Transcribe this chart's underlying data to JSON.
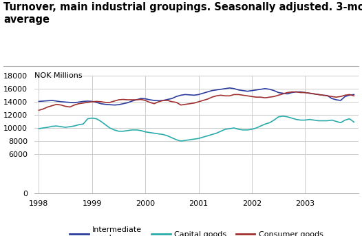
{
  "title_line1": "Turnover, main industrial groupings. Seasonally adjusted. 3-month moving",
  "title_line2": "average",
  "ylabel": "NOK Millions",
  "title_fontsize": 10.5,
  "label_fontsize": 8,
  "background_color": "#ffffff",
  "grid_color": "#cccccc",
  "ylim": [
    0,
    18000
  ],
  "yticks": [
    0,
    6000,
    8000,
    10000,
    12000,
    14000,
    16000,
    18000
  ],
  "line_colors": {
    "intermediate": "#2b3c9e",
    "capital": "#2aabab",
    "consumer": "#a03030"
  },
  "legend_labels": [
    "Intermediate\ngoods",
    "Capital goods",
    "Consumer goods"
  ],
  "intermediate_goods": [
    14050,
    14100,
    14150,
    14200,
    14100,
    14000,
    13950,
    13900,
    13850,
    13950,
    14050,
    14100,
    14050,
    13900,
    13700,
    13600,
    13550,
    13500,
    13550,
    13700,
    13850,
    14100,
    14300,
    14500,
    14450,
    14300,
    14200,
    14150,
    14200,
    14350,
    14500,
    14800,
    15000,
    15100,
    15050,
    15000,
    15100,
    15300,
    15500,
    15700,
    15800,
    15900,
    16000,
    16100,
    16000,
    15800,
    15700,
    15600,
    15700,
    15800,
    15900,
    16000,
    15900,
    15700,
    15400,
    15300,
    15200,
    15400,
    15500,
    15500,
    15400,
    15300,
    15200,
    15100,
    15000,
    14950,
    14500,
    14300,
    14200,
    14800,
    15000,
    15100
  ],
  "capital_goods": [
    9900,
    10000,
    10100,
    10250,
    10300,
    10200,
    10100,
    10200,
    10300,
    10500,
    10600,
    11400,
    11500,
    11400,
    11000,
    10500,
    10000,
    9700,
    9500,
    9500,
    9600,
    9700,
    9700,
    9600,
    9400,
    9300,
    9200,
    9100,
    9000,
    8800,
    8500,
    8200,
    8000,
    8100,
    8200,
    8300,
    8400,
    8600,
    8800,
    9000,
    9200,
    9500,
    9800,
    9900,
    10000,
    9800,
    9700,
    9700,
    9800,
    10000,
    10300,
    10600,
    10800,
    11200,
    11700,
    11800,
    11700,
    11500,
    11300,
    11200,
    11200,
    11300,
    11200,
    11100,
    11100,
    11100,
    11200,
    11000,
    10800,
    11200,
    11400,
    10900
  ],
  "consumer_goods": [
    12700,
    12900,
    13200,
    13400,
    13600,
    13500,
    13300,
    13200,
    13500,
    13700,
    13800,
    13900,
    14000,
    14050,
    14000,
    13900,
    13900,
    14100,
    14300,
    14350,
    14300,
    14300,
    14300,
    14350,
    14200,
    13900,
    13700,
    14000,
    14200,
    14200,
    14000,
    13900,
    13500,
    13600,
    13700,
    13800,
    14000,
    14200,
    14400,
    14700,
    14900,
    15000,
    14900,
    14900,
    15100,
    15100,
    15000,
    14900,
    14800,
    14700,
    14700,
    14600,
    14700,
    14800,
    15000,
    15200,
    15400,
    15500,
    15500,
    15400,
    15400,
    15300,
    15200,
    15100,
    15000,
    14900,
    14800,
    14700,
    14800,
    15000,
    15100,
    14900
  ],
  "x_tick_labels": [
    "1998",
    "1999",
    "2000",
    "2001",
    "2002",
    "2003"
  ],
  "x_tick_positions": [
    0,
    12,
    24,
    36,
    48,
    60
  ]
}
